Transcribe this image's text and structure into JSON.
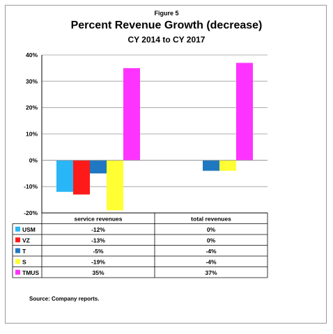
{
  "figure_label": "Figure 5",
  "source_note": "Source:  Company reports.",
  "chart_data": {
    "type": "bar",
    "title": "Percent Revenue Growth (decrease)",
    "subtitle": "CY 2014 to CY 2017",
    "categories": [
      "service revenues",
      "total revenues"
    ],
    "series": [
      {
        "name": "USM",
        "color": "#29B6F6",
        "values": [
          -12,
          0
        ],
        "labels": [
          "-12%",
          "0%"
        ]
      },
      {
        "name": "VZ",
        "color": "#FF1A1A",
        "values": [
          -13,
          0
        ],
        "labels": [
          "-13%",
          "0%"
        ]
      },
      {
        "name": "T",
        "color": "#1F78C1",
        "values": [
          -5,
          -4
        ],
        "labels": [
          "-5%",
          "-4%"
        ]
      },
      {
        "name": "S",
        "color": "#FFFF33",
        "values": [
          -19,
          -4
        ],
        "labels": [
          "-19%",
          "-4%"
        ]
      },
      {
        "name": "TMUS",
        "color": "#FF33FF",
        "values": [
          35,
          37
        ],
        "labels": [
          "35%",
          "37%"
        ]
      }
    ],
    "yticks": [
      40,
      30,
      20,
      10,
      0,
      -10,
      -20
    ],
    "ytick_labels": [
      "40%",
      "30%",
      "20%",
      "10%",
      "0%",
      "-10%",
      "-20%"
    ],
    "ylim": [
      -20,
      40
    ],
    "grid": true,
    "legend": "data-table"
  }
}
